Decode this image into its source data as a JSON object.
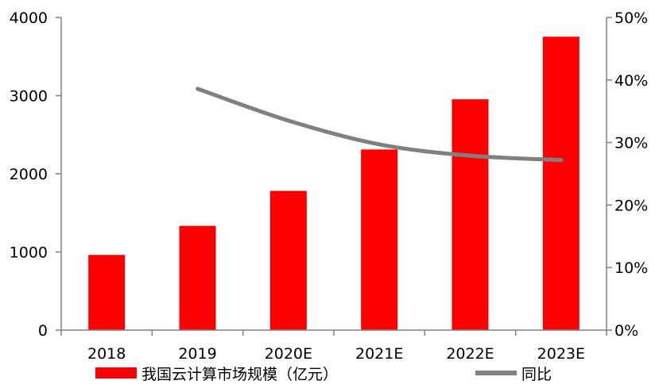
{
  "chart_data": {
    "type": "bar",
    "categories": [
      "2018",
      "2019",
      "2020E",
      "2021E",
      "2022E",
      "2023E"
    ],
    "series": [
      {
        "name": "我国云计算市场规模（亿元）",
        "type": "bar",
        "axis": "left",
        "color": "#ff0000",
        "values": [
          962,
          1334,
          1781,
          2311,
          2953,
          3754
        ]
      },
      {
        "name": "同比",
        "type": "line",
        "axis": "right",
        "color": "#808080",
        "values": [
          null,
          38.6,
          33.5,
          29.7,
          27.9,
          27.2
        ]
      }
    ],
    "y_left": {
      "ylim": [
        0,
        4000
      ],
      "ticks": [
        0,
        1000,
        2000,
        3000,
        4000
      ],
      "tick_labels": [
        "0",
        "1000",
        "2000",
        "3000",
        "4000"
      ]
    },
    "y_right": {
      "ylim": [
        0,
        50
      ],
      "ticks": [
        0,
        10,
        20,
        30,
        40,
        50
      ],
      "tick_labels": [
        "0%",
        "10%",
        "20%",
        "30%",
        "40%",
        "50%"
      ]
    },
    "grid": false,
    "legend": "bottom"
  }
}
